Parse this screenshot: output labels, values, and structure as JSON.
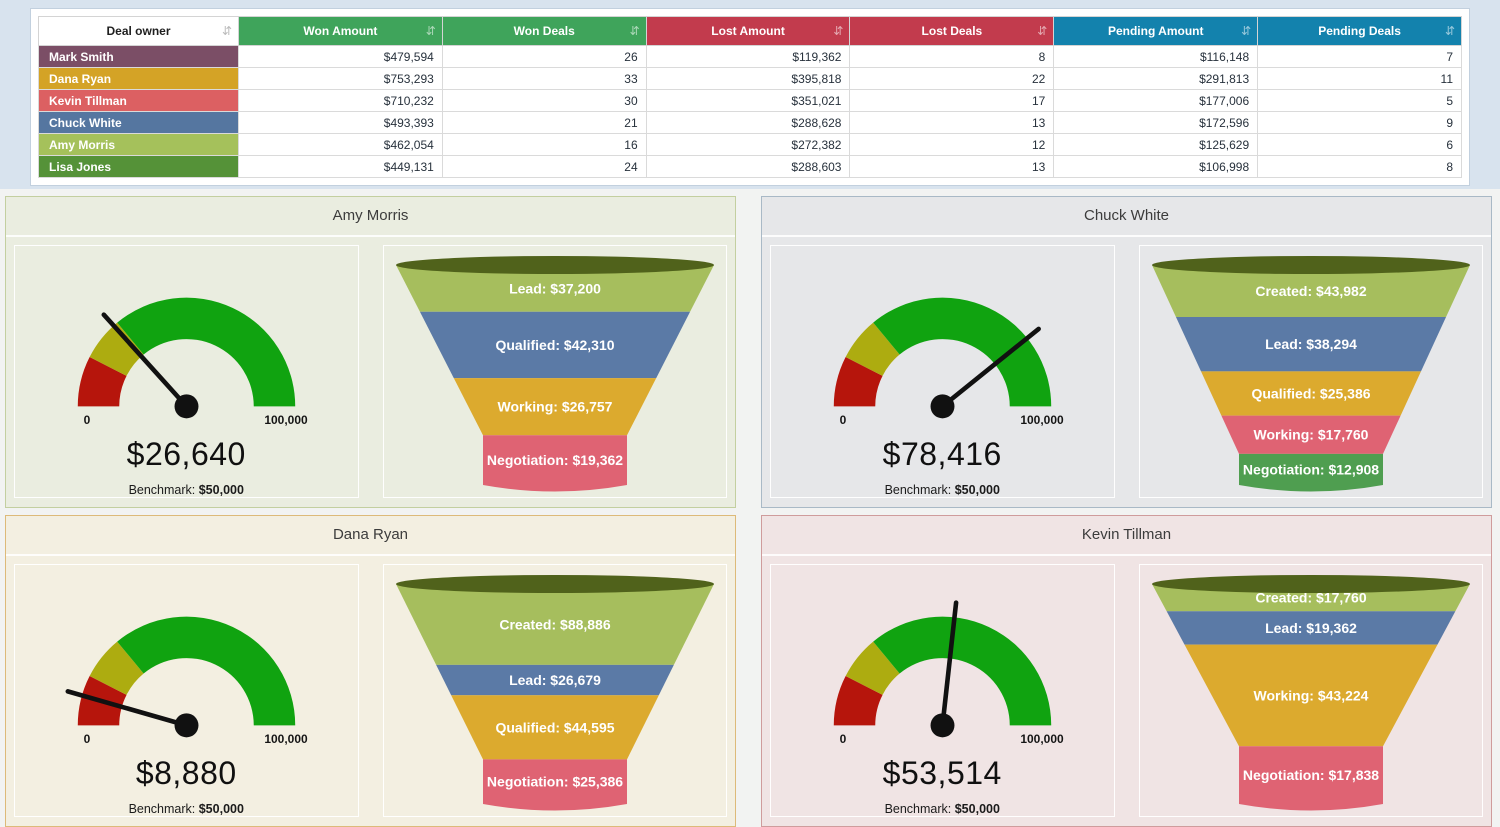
{
  "icons": {
    "sort": "⇵"
  },
  "colors": {
    "page_bg": "#d8e3ee",
    "panels_bg": "#f2f3f2",
    "gauge_needle": "#111111",
    "funnel_rim": "#50621b"
  },
  "gauge_config": {
    "min": 0,
    "max": 100000,
    "bands": [
      {
        "to": 0.15,
        "color": "#b6150c",
        "name": "red"
      },
      {
        "to": 0.28,
        "color": "#adac10",
        "name": "olive"
      },
      {
        "to": 1.0,
        "color": "#10a310",
        "name": "green"
      }
    ]
  },
  "table": {
    "header": [
      {
        "label": "Deal owner",
        "bg": "#ffffff",
        "fg": "#1f1f1f"
      },
      {
        "label": "Won Amount",
        "bg": "#3fa45b",
        "fg": "#ffffff"
      },
      {
        "label": "Won Deals",
        "bg": "#3fa45b",
        "fg": "#ffffff"
      },
      {
        "label": "Lost Amount",
        "bg": "#c23b4d",
        "fg": "#ffffff"
      },
      {
        "label": "Lost Deals",
        "bg": "#c23b4d",
        "fg": "#ffffff"
      },
      {
        "label": "Pending Amount",
        "bg": "#1382ad",
        "fg": "#ffffff"
      },
      {
        "label": "Pending Deals",
        "bg": "#1382ad",
        "fg": "#ffffff"
      }
    ],
    "rows": [
      {
        "owner": "Mark Smith",
        "owner_bg": "#7b4e66",
        "cells": [
          "$479,594",
          "26",
          "$119,362",
          "8",
          "$116,148",
          "7"
        ]
      },
      {
        "owner": "Dana Ryan",
        "owner_bg": "#d4a326",
        "cells": [
          "$753,293",
          "33",
          "$395,818",
          "22",
          "$291,813",
          "11"
        ]
      },
      {
        "owner": "Kevin Tillman",
        "owner_bg": "#dc6062",
        "cells": [
          "$710,232",
          "30",
          "$351,021",
          "17",
          "$177,006",
          "5"
        ]
      },
      {
        "owner": "Chuck White",
        "owner_bg": "#5576a0",
        "cells": [
          "$493,393",
          "21",
          "$288,628",
          "13",
          "$172,596",
          "9"
        ]
      },
      {
        "owner": "Amy Morris",
        "owner_bg": "#a5c15b",
        "cells": [
          "$462,054",
          "16",
          "$272,382",
          "12",
          "$125,629",
          "6"
        ]
      },
      {
        "owner": "Lisa Jones",
        "owner_bg": "#559238",
        "cells": [
          "$449,131",
          "24",
          "$288,603",
          "13",
          "$106,998",
          "8"
        ]
      }
    ]
  },
  "panels": [
    {
      "title": "Amy Morris",
      "bg": "#eaede0",
      "border": "#c3cfa0",
      "gauge": {
        "value": 26640,
        "display": "$26,640",
        "min_label": "0",
        "max_label": "100,000",
        "benchmark_label": "Benchmark:",
        "benchmark_value": "$50,000"
      },
      "funnel": {
        "stages": [
          {
            "label": "Lead: $37,200",
            "value": 37200,
            "color": "#a6be5d"
          },
          {
            "label": "Qualified: $42,310",
            "value": 42310,
            "color": "#5b7aa6"
          },
          {
            "label": "Working: $26,757",
            "value": 26757,
            "color": "#dcaa2e"
          },
          {
            "label": "Negotiation: $19,362",
            "value": 19362,
            "color": "#df6373"
          }
        ]
      }
    },
    {
      "title": "Chuck White",
      "bg": "#e6e7e9",
      "border": "#a9b9c6",
      "gauge": {
        "value": 78416,
        "display": "$78,416",
        "min_label": "0",
        "max_label": "100,000",
        "benchmark_label": "Benchmark:",
        "benchmark_value": "$50,000"
      },
      "funnel": {
        "stages": [
          {
            "label": "Created: $43,982",
            "value": 43982,
            "color": "#a6be5d"
          },
          {
            "label": "Lead: $38,294",
            "value": 38294,
            "color": "#5b7aa6"
          },
          {
            "label": "Qualified: $25,386",
            "value": 25386,
            "color": "#dcaa2e"
          },
          {
            "label": "Working: $17,760",
            "value": 17760,
            "color": "#df6373"
          },
          {
            "label": "Negotiation: $12,908",
            "value": 12908,
            "color": "#4f9e50"
          }
        ]
      }
    },
    {
      "title": "Dana Ryan",
      "bg": "#f3efe1",
      "border": "#ddba79",
      "gauge": {
        "value": 8880,
        "display": "$8,880",
        "min_label": "0",
        "max_label": "100,000",
        "benchmark_label": "Benchmark:",
        "benchmark_value": "$50,000"
      },
      "funnel": {
        "stages": [
          {
            "label": "Created: $88,886",
            "value": 88886,
            "color": "#a6be5d"
          },
          {
            "label": "Lead: $26,679",
            "value": 26679,
            "color": "#5b7aa6"
          },
          {
            "label": "Qualified: $44,595",
            "value": 44595,
            "color": "#dcaa2e"
          },
          {
            "label": "Negotiation: $25,386",
            "value": 25386,
            "color": "#df6373"
          }
        ]
      }
    },
    {
      "title": "Kevin Tillman",
      "bg": "#f0e4e4",
      "border": "#cf9c9c",
      "gauge": {
        "value": 53514,
        "display": "$53,514",
        "min_label": "0",
        "max_label": "100,000",
        "benchmark_label": "Benchmark:",
        "benchmark_value": "$50,000"
      },
      "funnel": {
        "stages": [
          {
            "label": "Created: $17,760",
            "value": 17760,
            "color": "#a6be5d"
          },
          {
            "label": "Lead: $19,362",
            "value": 19362,
            "color": "#5b7aa6"
          },
          {
            "label": "Working: $43,224",
            "value": 43224,
            "color": "#dcaa2e"
          },
          {
            "label": "Negotiation: $17,838",
            "value": 17838,
            "color": "#df6373"
          }
        ]
      }
    }
  ],
  "chart_data": [
    {
      "type": "table",
      "columns": [
        "Deal owner",
        "Won Amount",
        "Won Deals",
        "Lost Amount",
        "Lost Deals",
        "Pending Amount",
        "Pending Deals"
      ],
      "rows": [
        [
          "Mark Smith",
          479594,
          26,
          119362,
          8,
          116148,
          7
        ],
        [
          "Dana Ryan",
          753293,
          33,
          395818,
          22,
          291813,
          11
        ],
        [
          "Kevin Tillman",
          710232,
          30,
          351021,
          17,
          177006,
          5
        ],
        [
          "Chuck White",
          493393,
          21,
          288628,
          13,
          172596,
          9
        ],
        [
          "Amy Morris",
          462054,
          16,
          272382,
          12,
          125629,
          6
        ],
        [
          "Lisa Jones",
          449131,
          24,
          288603,
          13,
          106998,
          8
        ]
      ]
    },
    {
      "type": "gauge",
      "title": "Amy Morris",
      "value": 26640,
      "min": 0,
      "max": 100000,
      "benchmark": 50000,
      "tick_labels": [
        "0",
        "100,000"
      ]
    },
    {
      "type": "funnel",
      "title": "Amy Morris",
      "stages": [
        "Lead",
        "Qualified",
        "Working",
        "Negotiation"
      ],
      "values": [
        37200,
        42310,
        26757,
        19362
      ]
    },
    {
      "type": "gauge",
      "title": "Chuck White",
      "value": 78416,
      "min": 0,
      "max": 100000,
      "benchmark": 50000,
      "tick_labels": [
        "0",
        "100,000"
      ]
    },
    {
      "type": "funnel",
      "title": "Chuck White",
      "stages": [
        "Created",
        "Lead",
        "Qualified",
        "Working",
        "Negotiation"
      ],
      "values": [
        43982,
        38294,
        25386,
        17760,
        12908
      ]
    },
    {
      "type": "gauge",
      "title": "Dana Ryan",
      "value": 8880,
      "min": 0,
      "max": 100000,
      "benchmark": 50000,
      "tick_labels": [
        "0",
        "100,000"
      ]
    },
    {
      "type": "funnel",
      "title": "Dana Ryan",
      "stages": [
        "Created",
        "Lead",
        "Qualified",
        "Negotiation"
      ],
      "values": [
        88886,
        26679,
        44595,
        25386
      ]
    },
    {
      "type": "gauge",
      "title": "Kevin Tillman",
      "value": 53514,
      "min": 0,
      "max": 100000,
      "benchmark": 50000,
      "tick_labels": [
        "0",
        "100,000"
      ]
    },
    {
      "type": "funnel",
      "title": "Kevin Tillman",
      "stages": [
        "Created",
        "Lead",
        "Working",
        "Negotiation"
      ],
      "values": [
        17760,
        19362,
        43224,
        17838
      ]
    }
  ]
}
